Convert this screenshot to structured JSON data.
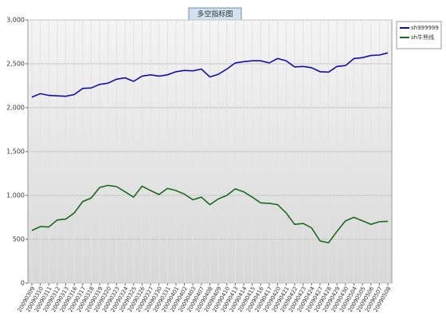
{
  "chart_data": {
    "type": "line",
    "title": "多空指标图",
    "categories": [
      "20090309",
      "20090310",
      "20090311",
      "20090312",
      "20090313",
      "20090316",
      "20090317",
      "20090318",
      "20090319",
      "20090320",
      "20090323",
      "20090324",
      "20090325",
      "20090326",
      "20090327",
      "20090330",
      "20090331",
      "20090401",
      "20090402",
      "20090403",
      "20090407",
      "20090408",
      "20090409",
      "20090410",
      "20090413",
      "20090414",
      "20090415",
      "20090416",
      "20090417",
      "20090420",
      "20090421",
      "20090422",
      "20090423",
      "20090424",
      "20090427",
      "20090428",
      "20090429",
      "20090430",
      "20090504",
      "20090505",
      "20090506",
      "20090507",
      "20090508"
    ],
    "series": [
      {
        "name": "sh999999",
        "color": "#1010b0",
        "values": [
          2120,
          2160,
          2140,
          2135,
          2130,
          2150,
          2220,
          2225,
          2265,
          2280,
          2325,
          2340,
          2300,
          2360,
          2375,
          2360,
          2375,
          2410,
          2425,
          2420,
          2440,
          2350,
          2380,
          2440,
          2510,
          2525,
          2535,
          2535,
          2510,
          2560,
          2535,
          2465,
          2470,
          2455,
          2410,
          2405,
          2470,
          2480,
          2560,
          2570,
          2595,
          2600,
          2625
        ]
      },
      {
        "name": "sh牛熊线",
        "color": "#1a6b1a",
        "values": [
          600,
          645,
          640,
          720,
          730,
          800,
          930,
          970,
          1090,
          1115,
          1100,
          1040,
          980,
          1105,
          1055,
          1010,
          1080,
          1055,
          1015,
          950,
          980,
          895,
          960,
          1000,
          1075,
          1040,
          980,
          915,
          910,
          895,
          800,
          670,
          680,
          630,
          480,
          460,
          590,
          710,
          750,
          710,
          670,
          700,
          705
        ]
      }
    ],
    "ylim": [
      0,
      3000
    ],
    "yticks": [
      0,
      500,
      {
        "value": 1000,
        "label": "1,000"
      },
      {
        "value": 1500,
        "label": "1,500"
      },
      {
        "value": 2000,
        "label": "2,000"
      },
      {
        "value": 2500,
        "label": "2,500"
      },
      {
        "value": 3000,
        "label": "3,000"
      }
    ],
    "grid": true,
    "legend": "top-right"
  }
}
